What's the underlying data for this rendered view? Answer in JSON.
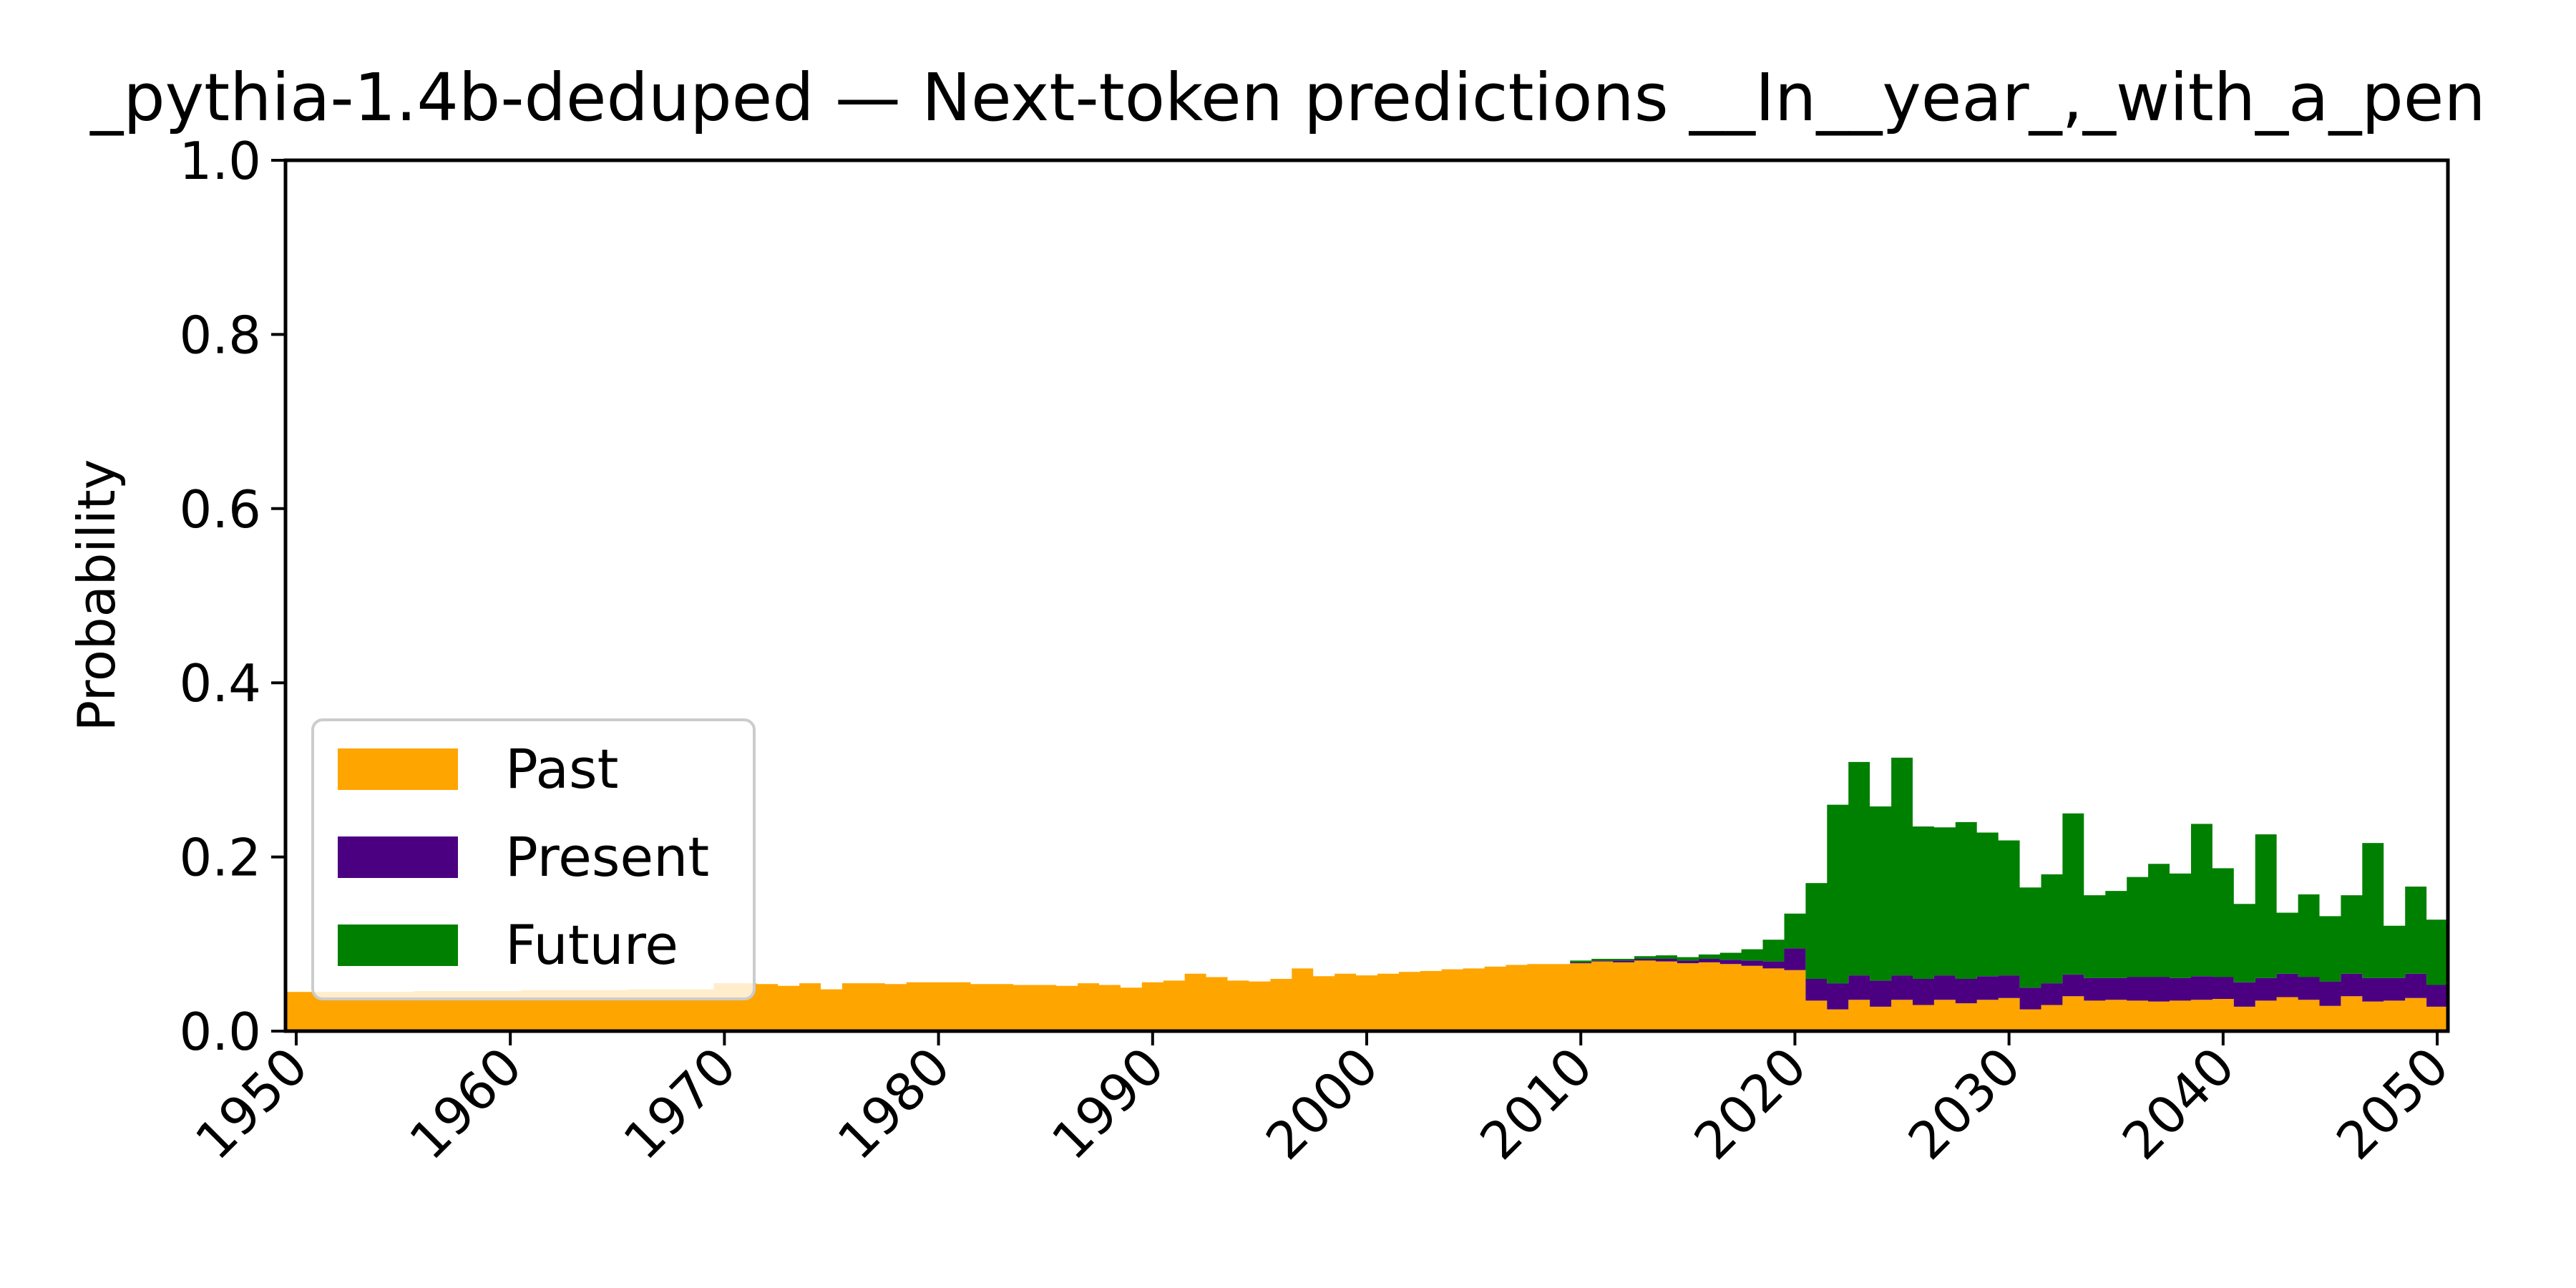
{
  "chart_data": {
    "type": "area",
    "stacked": true,
    "title": "_pythia-1.4b-deduped — Next-token predictions __In__year_,_with_a_pen",
    "xlabel": "",
    "ylabel": "Probability",
    "xlim": [
      1949.5,
      2050.5
    ],
    "ylim": [
      0.0,
      1.0
    ],
    "x_ticks": [
      "1950",
      "1960",
      "1970",
      "1980",
      "1990",
      "2000",
      "2010",
      "2020",
      "2030",
      "2040",
      "2050"
    ],
    "y_ticks": [
      "0.0",
      "0.2",
      "0.4",
      "0.6",
      "0.8",
      "1.0"
    ],
    "grid": false,
    "legend_position": "lower-left",
    "x_start": 1950,
    "series": [
      {
        "name": "Past",
        "color": "#FFA500",
        "values": [
          0.045,
          0.045,
          0.045,
          0.045,
          0.045,
          0.045,
          0.046,
          0.046,
          0.046,
          0.046,
          0.046,
          0.047,
          0.047,
          0.047,
          0.047,
          0.047,
          0.048,
          0.048,
          0.048,
          0.048,
          0.055,
          0.055,
          0.054,
          0.052,
          0.055,
          0.048,
          0.055,
          0.055,
          0.054,
          0.056,
          0.056,
          0.056,
          0.054,
          0.054,
          0.053,
          0.053,
          0.052,
          0.055,
          0.053,
          0.05,
          0.056,
          0.058,
          0.066,
          0.062,
          0.058,
          0.057,
          0.06,
          0.072,
          0.063,
          0.066,
          0.064,
          0.066,
          0.068,
          0.069,
          0.071,
          0.072,
          0.074,
          0.076,
          0.077,
          0.077,
          0.078,
          0.08,
          0.079,
          0.081,
          0.08,
          0.078,
          0.079,
          0.077,
          0.075,
          0.072,
          0.07,
          0.035,
          0.025,
          0.036,
          0.028,
          0.036,
          0.03,
          0.036,
          0.032,
          0.036,
          0.038,
          0.025,
          0.03,
          0.04,
          0.035,
          0.036,
          0.035,
          0.034,
          0.035,
          0.036,
          0.037,
          0.028,
          0.035,
          0.039,
          0.036,
          0.029,
          0.04,
          0.034,
          0.035,
          0.038,
          0.028
        ]
      },
      {
        "name": "Present",
        "color": "#4B0082",
        "values": [
          0,
          0,
          0,
          0,
          0,
          0,
          0,
          0,
          0,
          0,
          0,
          0,
          0,
          0,
          0,
          0,
          0,
          0,
          0,
          0,
          0,
          0,
          0,
          0,
          0,
          0,
          0,
          0,
          0,
          0,
          0,
          0,
          0,
          0,
          0,
          0,
          0,
          0,
          0,
          0,
          0,
          0,
          0,
          0,
          0,
          0,
          0,
          0,
          0,
          0,
          0,
          0,
          0,
          0,
          0,
          0,
          0,
          0,
          0,
          0,
          0.001,
          0.001,
          0.002,
          0.002,
          0.003,
          0.003,
          0.004,
          0.005,
          0.006,
          0.008,
          0.025,
          0.025,
          0.03,
          0.028,
          0.03,
          0.028,
          0.03,
          0.028,
          0.028,
          0.027,
          0.026,
          0.025,
          0.025,
          0.025,
          0.026,
          0.025,
          0.027,
          0.028,
          0.026,
          0.027,
          0.025,
          0.028,
          0.026,
          0.027,
          0.026,
          0.028,
          0.026,
          0.027,
          0.026,
          0.028,
          0.025
        ]
      },
      {
        "name": "Future",
        "color": "#008000",
        "values": [
          0,
          0,
          0,
          0,
          0,
          0,
          0,
          0,
          0,
          0,
          0,
          0,
          0,
          0,
          0,
          0,
          0,
          0,
          0,
          0,
          0,
          0,
          0,
          0,
          0,
          0,
          0,
          0,
          0,
          0,
          0,
          0,
          0,
          0,
          0,
          0,
          0,
          0,
          0,
          0,
          0,
          0,
          0,
          0,
          0,
          0,
          0,
          0,
          0,
          0,
          0,
          0,
          0,
          0,
          0,
          0,
          0,
          0,
          0,
          0,
          0.002,
          0.002,
          0.002,
          0.003,
          0.004,
          0.004,
          0.005,
          0.008,
          0.013,
          0.025,
          0.04,
          0.11,
          0.205,
          0.245,
          0.2,
          0.25,
          0.175,
          0.17,
          0.18,
          0.165,
          0.155,
          0.115,
          0.125,
          0.185,
          0.095,
          0.1,
          0.115,
          0.13,
          0.12,
          0.175,
          0.125,
          0.09,
          0.165,
          0.07,
          0.095,
          0.075,
          0.09,
          0.155,
          0.06,
          0.1,
          0.075
        ]
      }
    ]
  }
}
